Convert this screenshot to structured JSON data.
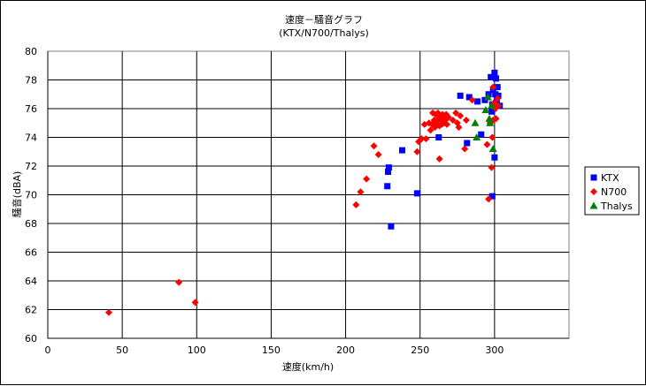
{
  "chart_data": {
    "type": "scatter",
    "title": "速度－騒音グラフ",
    "subtitle": "(KTX/N700/Thalys)",
    "xlabel": "速度(km/h)",
    "ylabel": "騒音(dBA)",
    "xlim": [
      0,
      350
    ],
    "ylim": [
      60,
      80
    ],
    "xticks": [
      0,
      50,
      100,
      150,
      200,
      250,
      300
    ],
    "yticks": [
      60,
      62,
      64,
      66,
      68,
      70,
      72,
      74,
      76,
      78,
      80
    ],
    "grid": true,
    "legend_position": "right",
    "series": [
      {
        "name": "KTX",
        "color": "#0000ff",
        "marker": "square",
        "points": [
          [
            228,
            70.6
          ],
          [
            228.5,
            71.6
          ],
          [
            229,
            71.9
          ],
          [
            230.5,
            67.8
          ],
          [
            238,
            73.1
          ],
          [
            248,
            70.1
          ],
          [
            262.5,
            74.0
          ],
          [
            277,
            76.9
          ],
          [
            281.5,
            73.6
          ],
          [
            283,
            76.8
          ],
          [
            288.5,
            76.5
          ],
          [
            291,
            74.2
          ],
          [
            293.5,
            76.6
          ],
          [
            296,
            77.0
          ],
          [
            297.5,
            78.2
          ],
          [
            298,
            75.8
          ],
          [
            298.5,
            76.3
          ],
          [
            298.5,
            69.9
          ],
          [
            299,
            77.3
          ],
          [
            299.5,
            76.0
          ],
          [
            300,
            78.5
          ],
          [
            300,
            72.6
          ],
          [
            300.5,
            77.0
          ],
          [
            301,
            78.1
          ],
          [
            301.5,
            76.6
          ],
          [
            302,
            77.5
          ],
          [
            302.5,
            76.9
          ],
          [
            303.5,
            76.2
          ]
        ]
      },
      {
        "name": "N700",
        "color": "#ff0000",
        "marker": "diamond",
        "points": [
          [
            41,
            61.8
          ],
          [
            88,
            63.9
          ],
          [
            99,
            62.5
          ],
          [
            207,
            69.3
          ],
          [
            210,
            70.2
          ],
          [
            214,
            71.1
          ],
          [
            219,
            73.4
          ],
          [
            222,
            72.8
          ],
          [
            248,
            73.0
          ],
          [
            249,
            73.7
          ],
          [
            251,
            73.9
          ],
          [
            253,
            74.9
          ],
          [
            254,
            73.9
          ],
          [
            256,
            75.0
          ],
          [
            257,
            74.5
          ],
          [
            258,
            74.9
          ],
          [
            258.5,
            75.7
          ],
          [
            259.5,
            75.2
          ],
          [
            260,
            74.7
          ],
          [
            260.5,
            75.6
          ],
          [
            261,
            75.0
          ],
          [
            262,
            75.7
          ],
          [
            262.5,
            75.3
          ],
          [
            263,
            74.8
          ],
          [
            263,
            72.5
          ],
          [
            263.5,
            75.5
          ],
          [
            264,
            75.2
          ],
          [
            264.5,
            74.9
          ],
          [
            265,
            75.6
          ],
          [
            265.5,
            75.3
          ],
          [
            266,
            75.0
          ],
          [
            266.5,
            75.5
          ],
          [
            267,
            75.2
          ],
          [
            267.5,
            75.6
          ],
          [
            268,
            74.9
          ],
          [
            269,
            75.4
          ],
          [
            272,
            75.2
          ],
          [
            274,
            75.7
          ],
          [
            275,
            75.0
          ],
          [
            276,
            74.7
          ],
          [
            277,
            75.5
          ],
          [
            280,
            73.2
          ],
          [
            281,
            75.2
          ],
          [
            285,
            76.6
          ],
          [
            295,
            73.5
          ],
          [
            296,
            69.7
          ],
          [
            297,
            75.0
          ],
          [
            298,
            71.9
          ],
          [
            298.5,
            74.0
          ],
          [
            299,
            75.2
          ],
          [
            299,
            77.5
          ],
          [
            299.5,
            76.4
          ],
          [
            300,
            76.1
          ],
          [
            300.5,
            76.0
          ],
          [
            301,
            75.3
          ],
          [
            302,
            76.7
          ],
          [
            302.5,
            76.2
          ]
        ]
      },
      {
        "name": "Thalys",
        "color": "#008000",
        "marker": "triangle",
        "points": [
          [
            287,
            75.0
          ],
          [
            288,
            74.0
          ],
          [
            294,
            75.9
          ],
          [
            295.5,
            76.8
          ],
          [
            296.5,
            75.3
          ],
          [
            297,
            75.0
          ],
          [
            298,
            76.2
          ],
          [
            299,
            73.2
          ]
        ]
      }
    ]
  }
}
